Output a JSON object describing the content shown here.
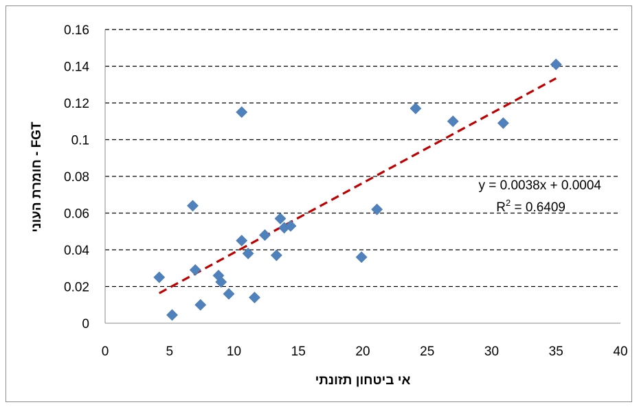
{
  "chart_data": {
    "type": "scatter",
    "title": "",
    "xlabel": "אי ביטחון תזונתי",
    "ylabel": "FGT - חומרת העוני",
    "xlim": [
      0,
      40
    ],
    "ylim": [
      0,
      0.16
    ],
    "x_ticks": [
      "0",
      "5",
      "10",
      "15",
      "20",
      "25",
      "30",
      "35",
      "40"
    ],
    "y_ticks": [
      "0",
      "0.02",
      "0.04",
      "0.06",
      "0.08",
      "0.1",
      "0.12",
      "0.14",
      "0.16"
    ],
    "grid": "horizontal dashed",
    "marker_color": "#4f81bd",
    "trendline_color": "#c00000",
    "series": [
      {
        "marker": "diamond",
        "points": [
          {
            "x": 4.2,
            "y": 0.025
          },
          {
            "x": 5.2,
            "y": 0.0045
          },
          {
            "x": 6.8,
            "y": 0.064
          },
          {
            "x": 7.0,
            "y": 0.029
          },
          {
            "x": 7.4,
            "y": 0.01
          },
          {
            "x": 8.8,
            "y": 0.026
          },
          {
            "x": 9.0,
            "y": 0.0225
          },
          {
            "x": 9.6,
            "y": 0.016
          },
          {
            "x": 10.6,
            "y": 0.045
          },
          {
            "x": 10.6,
            "y": 0.115
          },
          {
            "x": 11.1,
            "y": 0.038
          },
          {
            "x": 11.6,
            "y": 0.014
          },
          {
            "x": 12.4,
            "y": 0.048
          },
          {
            "x": 13.3,
            "y": 0.037
          },
          {
            "x": 13.6,
            "y": 0.057
          },
          {
            "x": 13.9,
            "y": 0.052
          },
          {
            "x": 14.4,
            "y": 0.053
          },
          {
            "x": 19.9,
            "y": 0.036
          },
          {
            "x": 21.1,
            "y": 0.062
          },
          {
            "x": 24.1,
            "y": 0.117
          },
          {
            "x": 27.0,
            "y": 0.11
          },
          {
            "x": 30.9,
            "y": 0.109
          },
          {
            "x": 35.0,
            "y": 0.141
          }
        ]
      }
    ],
    "trendline": {
      "type": "linear",
      "slope": 0.0038,
      "intercept": 0.0004,
      "x_range": [
        4.2,
        35.0
      ],
      "equation_label": "y = 0.0038x + 0.0004",
      "r2_prefix": "R",
      "r2_sup": "2",
      "r2_suffix": " = 0.6409"
    }
  }
}
